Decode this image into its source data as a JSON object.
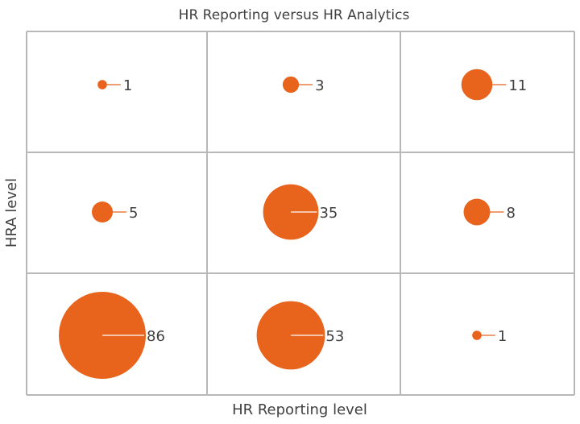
{
  "chart_data": {
    "type": "bubble",
    "title": "HR Reporting versus HR Analytics",
    "xlabel": "HR Reporting level",
    "ylabel": "HRA level",
    "grid": true,
    "grid_size": [
      3,
      3
    ],
    "marker_color": "#E8631C",
    "leader_color_outside": "#E8631C",
    "leader_color_inside": "#ffffff",
    "points": [
      {
        "col": 1,
        "row": 3,
        "value": 1
      },
      {
        "col": 2,
        "row": 3,
        "value": 3
      },
      {
        "col": 3,
        "row": 3,
        "value": 11
      },
      {
        "col": 1,
        "row": 2,
        "value": 5
      },
      {
        "col": 2,
        "row": 2,
        "value": 35
      },
      {
        "col": 3,
        "row": 2,
        "value": 8
      },
      {
        "col": 1,
        "row": 1,
        "value": 86
      },
      {
        "col": 2,
        "row": 1,
        "value": 53
      },
      {
        "col": 3,
        "row": 1,
        "value": 1
      }
    ]
  }
}
